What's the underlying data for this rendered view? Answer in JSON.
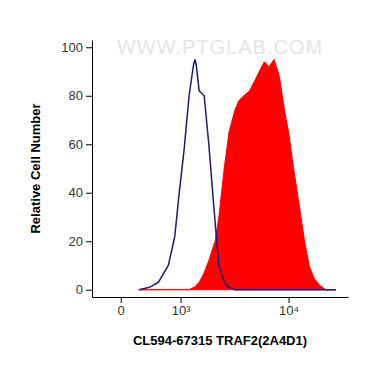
{
  "chart_data": {
    "type": "line",
    "x_label": "CL594-67315 TRAF2(2A4D1)",
    "y_label": "Relative Cell Number",
    "annotations": [
      "WWW.PTGLAB.COM"
    ],
    "log": "x",
    "x": [
      200,
      350,
      500,
      700,
      850,
      950,
      1100,
      1250,
      1400,
      1450,
      1500,
      1600,
      1800,
      2000,
      2300,
      2500,
      2800,
      3100,
      3500,
      3800,
      4200,
      4700,
      5200,
      5700,
      6300,
      6900,
      7600,
      8400,
      9200,
      10000,
      11000,
      12200,
      13500,
      14700,
      16000,
      17700,
      20000,
      24000
    ],
    "series": [
      {
        "type": "line",
        "color": "#1b1b7a",
        "values": [
          0,
          1,
          3,
          10,
          22,
          38,
          58,
          80,
          93,
          95,
          92,
          82,
          80,
          60,
          28,
          10,
          3,
          1,
          0,
          0,
          0,
          0,
          0,
          0,
          0,
          0,
          0,
          0,
          0,
          0,
          0,
          0,
          0,
          0,
          0,
          0,
          0,
          0
        ]
      },
      {
        "type": "area",
        "color": "#ff0000",
        "values": [
          0,
          0,
          0,
          0,
          0,
          0,
          0,
          0,
          1,
          1,
          2,
          3,
          7,
          12,
          20,
          30,
          50,
          65,
          74,
          78,
          80,
          82,
          86,
          90,
          94,
          92,
          95,
          88,
          75,
          65,
          50,
          35,
          20,
          10,
          5,
          2,
          0,
          0
        ]
      }
    ],
    "xlim": [
      -350,
      30000
    ],
    "xticks": [
      0,
      {
        "value": 1000,
        "label": "10³"
      },
      {
        "value": 10000,
        "label": "10⁴"
      }
    ],
    "ylim": [
      -3,
      103
    ],
    "yticks": [
      0,
      20,
      40,
      60,
      80,
      100
    ]
  }
}
